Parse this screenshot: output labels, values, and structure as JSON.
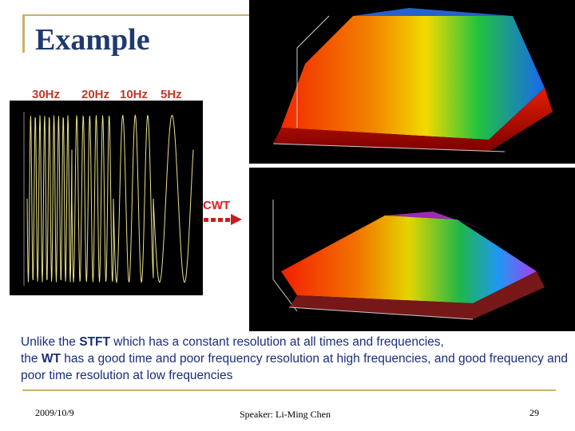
{
  "slide": {
    "title": "Example",
    "freq_labels": [
      "30Hz",
      "20Hz",
      "10Hz",
      "5Hz"
    ],
    "cwt_label": "CWT",
    "caption": {
      "p1": "Unlike the ",
      "stft": "STFT",
      "p2": " which has a constant resolution at all times and frequencies,",
      "p3": "the ",
      "wt": "WT",
      "p4": " has a good time and poor frequency resolution at high frequencies, and good frequency and poor time resolution at low frequencies"
    },
    "footer": {
      "date": "2009/10/9",
      "speaker": "Speaker: Li-Ming Chen",
      "page": "29"
    },
    "colors": {
      "title": "#1f3a6e",
      "accent_rule": "#c9b26a",
      "freq_label": "#c0392b",
      "caption": "#1a2e7a"
    }
  }
}
